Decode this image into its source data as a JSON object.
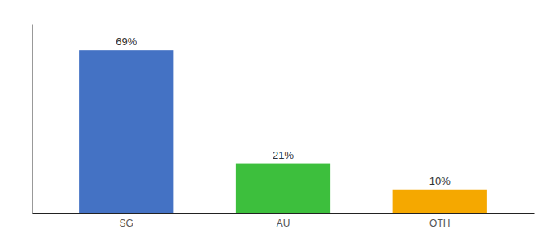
{
  "chart_data": {
    "type": "bar",
    "categories": [
      "SG",
      "AU",
      "OTH"
    ],
    "values": [
      69,
      21,
      10
    ],
    "colors": [
      "#4472c4",
      "#3dbf3d",
      "#f5a800"
    ],
    "ylim": [
      0,
      80
    ],
    "data_labels": true,
    "value_labels": [
      "69%",
      "21%",
      "10%"
    ],
    "tick_labels": "x"
  }
}
